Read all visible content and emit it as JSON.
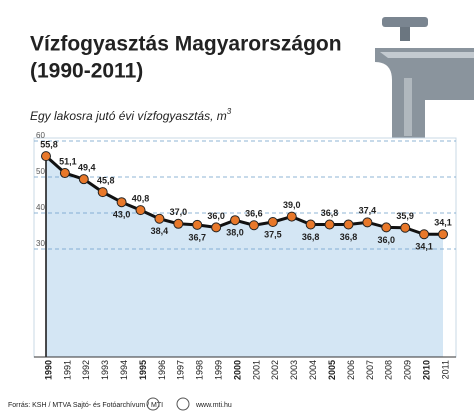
{
  "chart_data": {
    "type": "line",
    "title": "Vízfogyasztás Magyarországon",
    "title_period": "(1990-2011)",
    "subtitle": "Egy lakosra jutó évi vízfogyasztás, m",
    "subtitle_exponent": "3",
    "source": "Forrás: KSH / MTVA Sajtó- és Fotóarchívum / MTI",
    "website": "www.mti.hu",
    "categories": [
      "1990",
      "1991",
      "1992",
      "1993",
      "1994",
      "1995",
      "1996",
      "1997",
      "1998",
      "1999",
      "2000",
      "2001",
      "2002",
      "2003",
      "2004",
      "2005",
      "2006",
      "2007",
      "2008",
      "2009",
      "2010",
      "2011"
    ],
    "values": [
      55.8,
      51.1,
      49.4,
      45.8,
      43.0,
      40.8,
      38.4,
      37.0,
      36.7,
      36.0,
      38.0,
      36.6,
      37.5,
      39.0,
      36.8,
      36.8,
      36.8,
      37.4,
      36.0,
      35.9,
      34.1,
      34.1
    ],
    "value_labels": [
      "55,8",
      "51,1",
      "49,4",
      "45,8",
      "43,0",
      "40,8",
      "38,4",
      "37,0",
      "36,7",
      "36,0",
      "38,0",
      "36,6",
      "37,5",
      "39,0",
      "36,8",
      "36,8",
      "36,8",
      "37,4",
      "36,0",
      "35,9",
      "34,1",
      "34,1"
    ],
    "color": "#e8782a",
    "line_color": "#111111",
    "area_color": "#d4e6f4",
    "ylim": [
      0,
      60
    ],
    "yticks": [
      30,
      40,
      50,
      60
    ],
    "grid": true
  }
}
